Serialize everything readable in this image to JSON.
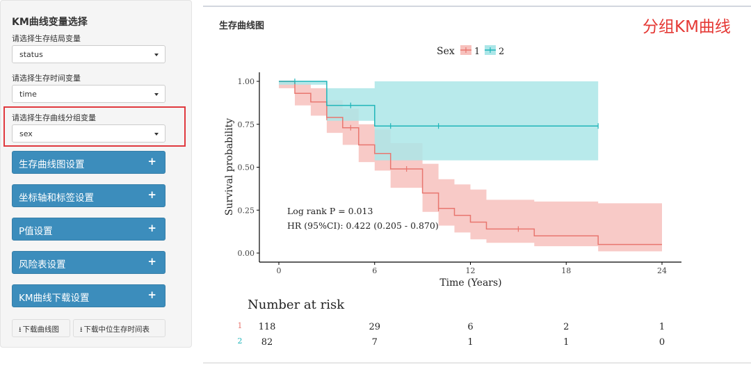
{
  "sidebar": {
    "title": "KM曲线变量选择",
    "status_label": "请选择生存结局变量",
    "status_value": "status",
    "time_label": "请选择生存时间变量",
    "time_value": "time",
    "group_label": "请选择生存曲线分组变量",
    "group_value": "sex",
    "collapse_buttons": [
      "生存曲线图设置",
      "坐标轴和标签设置",
      "P值设置",
      "风险表设置",
      "KM曲线下载设置"
    ],
    "plus": "+",
    "download_plot": "下载曲线图",
    "download_table": "下载中位生存时间表",
    "accent_color": "#3c8dbc",
    "highlight_color": "#e0393e"
  },
  "main": {
    "panel_title": "生存曲线图",
    "annotation": "分组KM曲线"
  },
  "chart_data": {
    "type": "line",
    "subtype": "kaplan-meier",
    "xlabel": "Time (Years)",
    "ylabel": "Survival probability",
    "xlim": [
      0,
      24
    ],
    "ylim": [
      0,
      1
    ],
    "xticks": [
      0,
      6,
      12,
      18,
      24
    ],
    "yticks": [
      0,
      0.25,
      0.5,
      0.75,
      1
    ],
    "ytick_labels": [
      "0.00",
      "0.25",
      "0.50",
      "0.75",
      "1.00"
    ],
    "legend": {
      "title": "Sex",
      "position": "top",
      "entries": [
        "1",
        "2"
      ]
    },
    "series": [
      {
        "name": "1",
        "color": "#e8766f",
        "fill": "#f7c1bd",
        "x": [
          0,
          1,
          2,
          3,
          4,
          5,
          6,
          7,
          9,
          10,
          11,
          12,
          13,
          16,
          20,
          24
        ],
        "y": [
          1.0,
          0.93,
          0.88,
          0.79,
          0.73,
          0.63,
          0.58,
          0.49,
          0.35,
          0.26,
          0.22,
          0.18,
          0.14,
          0.1,
          0.05,
          0.05
        ],
        "upper": [
          1.0,
          0.99,
          0.96,
          0.89,
          0.84,
          0.75,
          0.72,
          0.64,
          0.52,
          0.43,
          0.4,
          0.37,
          0.31,
          0.3,
          0.29,
          0.29
        ],
        "lower": [
          0.96,
          0.86,
          0.8,
          0.7,
          0.63,
          0.53,
          0.48,
          0.38,
          0.24,
          0.16,
          0.12,
          0.08,
          0.06,
          0.04,
          0.01,
          0.01
        ],
        "censor_x": [
          3,
          4.5,
          8,
          10,
          15
        ]
      },
      {
        "name": "2",
        "color": "#1fb5b9",
        "fill": "#abe6e8",
        "x": [
          0,
          3,
          6,
          20
        ],
        "y": [
          1.0,
          0.86,
          0.74,
          0.74
        ],
        "upper": [
          1.0,
          0.96,
          1.0,
          1.0
        ],
        "lower": [
          0.98,
          0.77,
          0.54,
          0.54
        ],
        "censor_x": [
          1,
          4.5,
          7,
          10,
          20
        ]
      }
    ],
    "annotations": [
      "Log rank P = 0.013",
      "HR (95%CI): 0.422 (0.205 - 0.870)"
    ],
    "risk_table": {
      "title": "Number at risk",
      "times": [
        0,
        6,
        12,
        18,
        24
      ],
      "rows": [
        {
          "group": "1",
          "values": [
            "118",
            "29",
            "6",
            "2",
            "1"
          ]
        },
        {
          "group": "2",
          "values": [
            "82",
            "7",
            "1",
            "1",
            "0"
          ]
        }
      ]
    }
  }
}
